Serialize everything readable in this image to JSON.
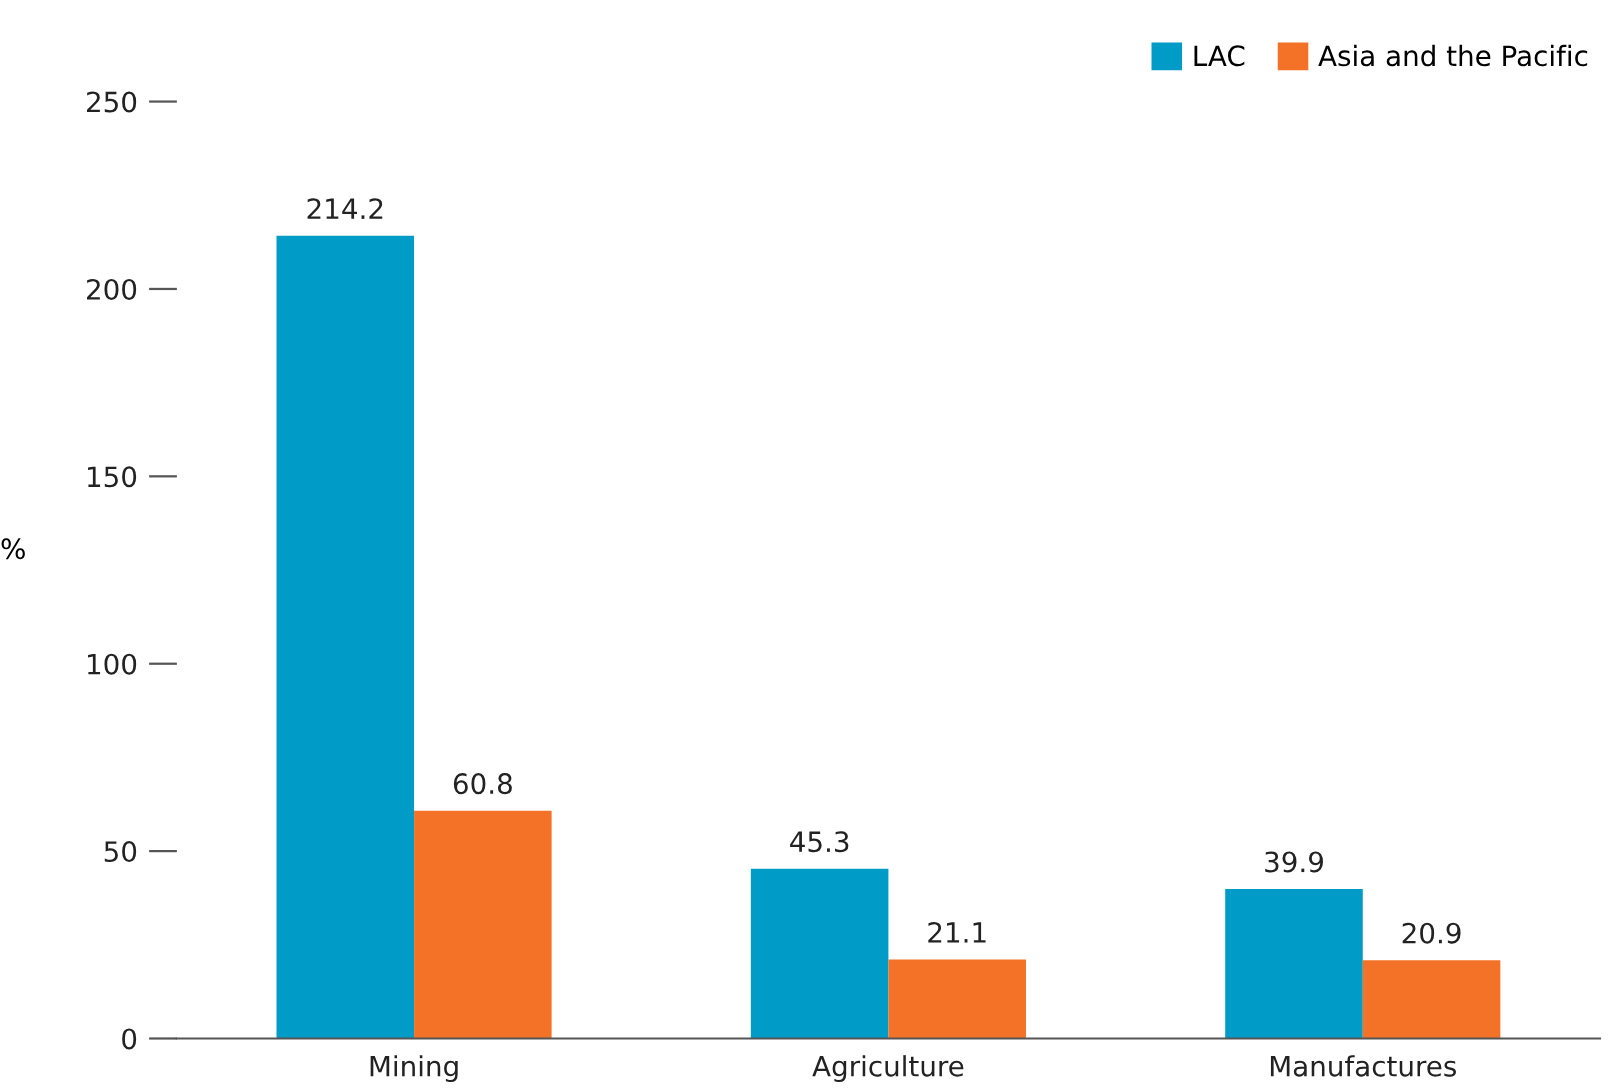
{
  "chart_data": {
    "type": "bar",
    "ylabel": "%",
    "categories": [
      "Mining",
      "Agriculture",
      "Manufactures"
    ],
    "series": [
      {
        "name": "LAC",
        "color": "#009bc6",
        "values": [
          214.2,
          45.3,
          39.9
        ]
      },
      {
        "name": "Asia and the Pacific",
        "color": "#f37227",
        "values": [
          60.8,
          21.1,
          20.9
        ]
      }
    ],
    "ylim": [
      0,
      250
    ],
    "yticks": [
      0,
      50,
      100,
      150,
      200,
      250
    ],
    "data_labels": true,
    "grid": false,
    "legend": "top right"
  }
}
